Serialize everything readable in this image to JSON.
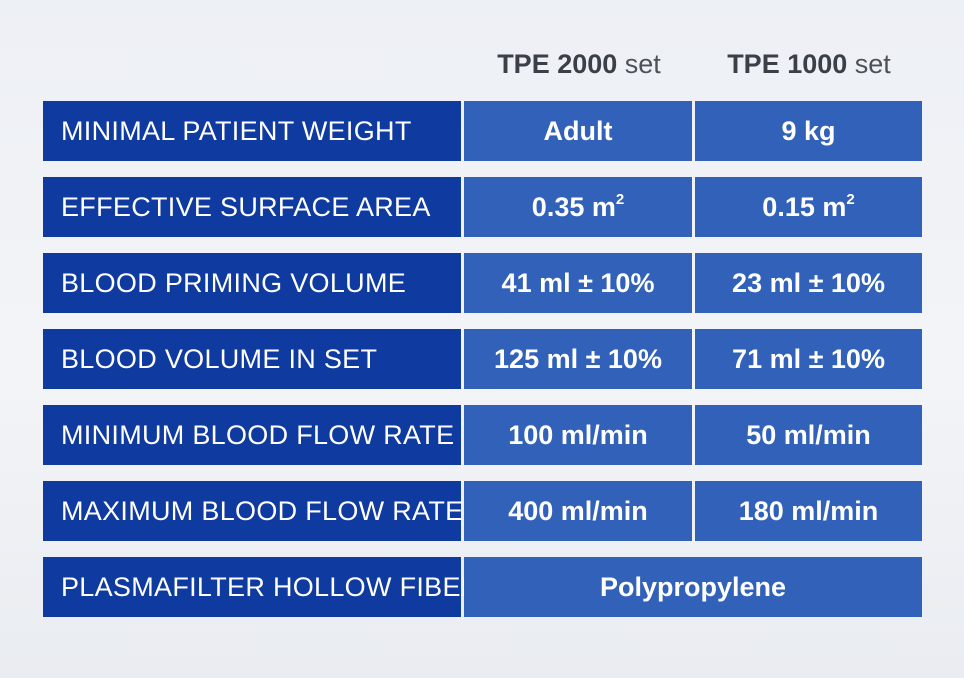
{
  "columns": [
    {
      "model": "TPE 2000",
      "suffix": "set"
    },
    {
      "model": "TPE 1000",
      "suffix": "set"
    }
  ],
  "rows": [
    {
      "label": "MINIMAL PATIENT WEIGHT",
      "tpe2000": "Adult",
      "tpe1000": "9 kg"
    },
    {
      "label": "EFFECTIVE SURFACE AREA",
      "tpe2000": "0.35 m",
      "tpe2000_sup": "2",
      "tpe1000": "0.15 m",
      "tpe1000_sup": "2"
    },
    {
      "label": "BLOOD PRIMING VOLUME",
      "tpe2000": "41 ml ± 10%",
      "tpe1000": "23 ml ± 10%"
    },
    {
      "label": "BLOOD VOLUME IN SET",
      "tpe2000": "125 ml ± 10%",
      "tpe1000": "71 ml ± 10%"
    },
    {
      "label": "MINIMUM BLOOD FLOW RATE",
      "tpe2000": "100 ml/min",
      "tpe1000": "50 ml/min"
    },
    {
      "label": "MAXIMUM BLOOD FLOW RATE",
      "tpe2000": "400 ml/min",
      "tpe1000": "180 ml/min"
    },
    {
      "label": "PLASMAFILTER HOLLOW FIBER",
      "shared": "Polypropylene"
    }
  ],
  "colors": {
    "label_background": "#0f3aa0",
    "value_background": "#3161b8",
    "header_text": "#3a3f48",
    "cell_text": "#ffffff"
  }
}
